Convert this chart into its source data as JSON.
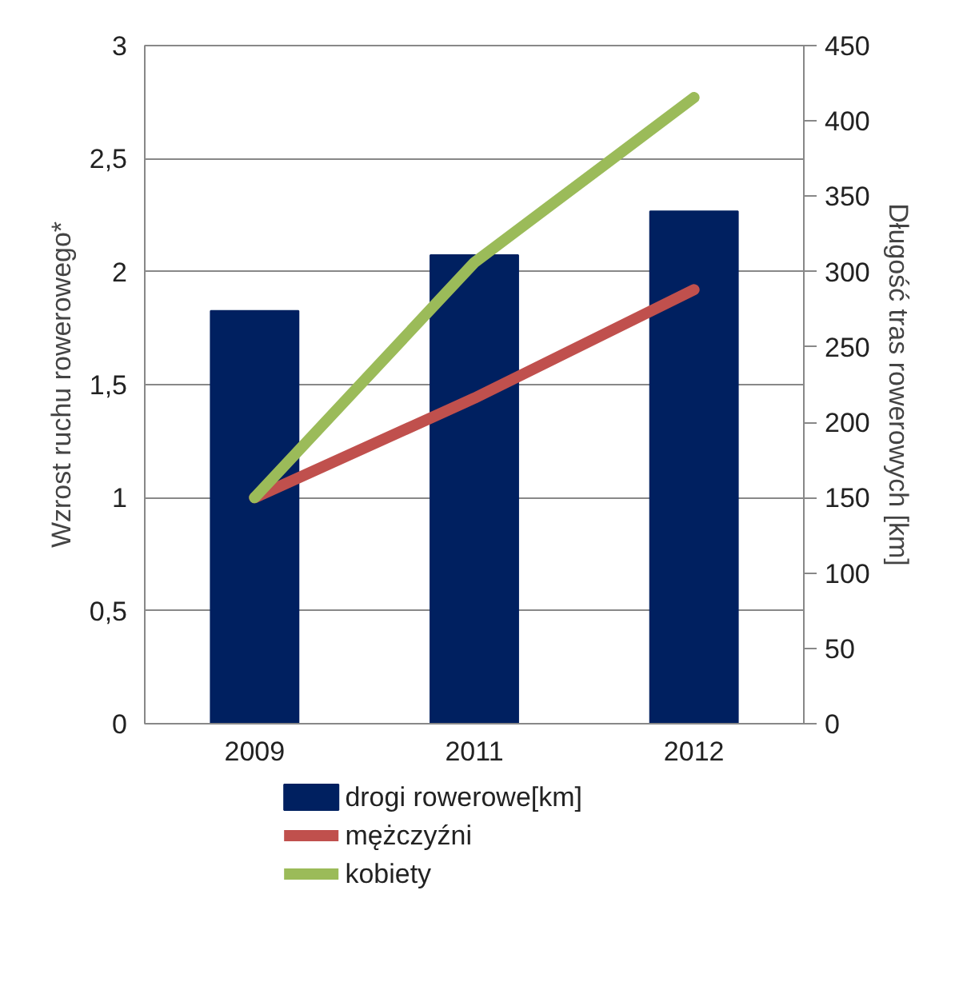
{
  "chart_data": {
    "type": "bar",
    "categories": [
      "2009",
      "2011",
      "2012"
    ],
    "ylabel": "Wzrost ruchu rowerowego*",
    "y2label": "Długość tras rowerowych [km]",
    "ylim": [
      0,
      3
    ],
    "yticks": [
      0,
      {
        "value": 0.5,
        "label": "0,5"
      },
      1,
      {
        "value": 1.5,
        "label": "1,5"
      },
      2,
      {
        "value": 2.5,
        "label": "2,5"
      },
      3
    ],
    "y2lim": [
      0,
      450
    ],
    "y2ticks": [
      0,
      50,
      100,
      150,
      200,
      250,
      300,
      350,
      400,
      450
    ],
    "grid": "y",
    "legend": "bottom",
    "series": [
      {
        "name": "drogi rowerowe[km]",
        "axis": "y2",
        "color": "#002060",
        "values": [
          274,
          311,
          340
        ]
      },
      {
        "name": "mężczyźni",
        "type": "line",
        "color": "#c0504d",
        "values": [
          1,
          1.44,
          1.92
        ]
      },
      {
        "name": "kobiety",
        "type": "line",
        "color": "#9bbb59",
        "values": [
          1,
          2.04,
          2.77
        ]
      }
    ]
  }
}
